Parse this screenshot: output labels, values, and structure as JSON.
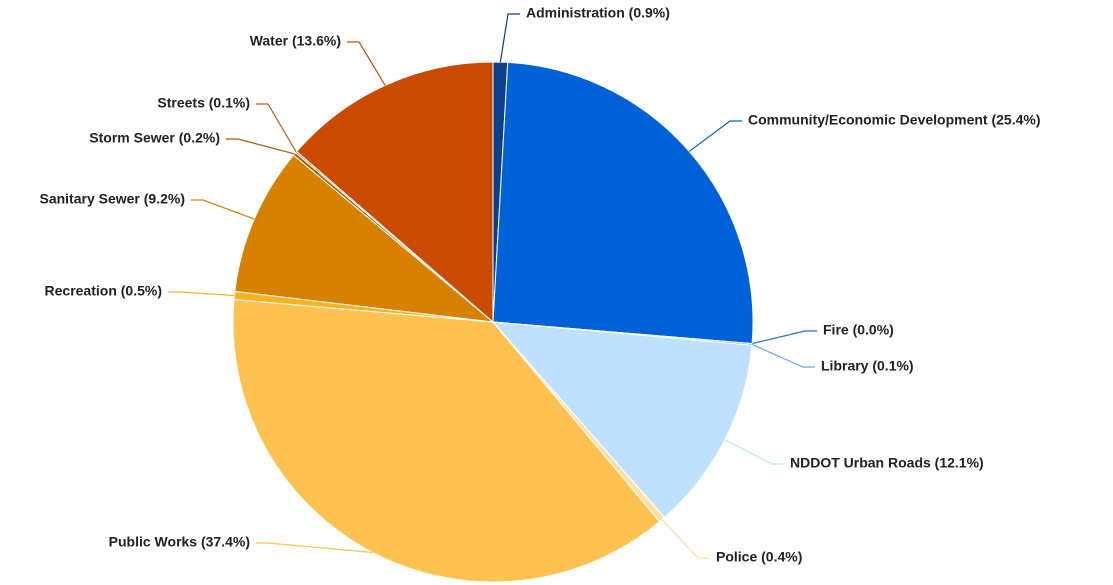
{
  "chart_data": {
    "type": "pie",
    "categories": [
      "Administration (0.9%)",
      "Community/Economic Development (25.4%)",
      "Fire (0.0%)",
      "Library (0.1%)",
      "NDDOT Urban Roads (12.1%)",
      "Police (0.4%)",
      "Public Works (37.4%)",
      "Recreation (0.5%)",
      "Sanitary Sewer (9.2%)",
      "Storm Sewer (0.2%)",
      "Streets (0.1%)",
      "Water (13.6%)"
    ],
    "values": [
      0.9,
      25.4,
      0.0,
      0.1,
      12.1,
      0.4,
      37.4,
      0.5,
      9.2,
      0.2,
      0.1,
      13.6
    ],
    "colors": [
      "#0d3f8a",
      "#0062d6",
      "#2a6fd6",
      "#6aa7ee",
      "#bfe0ff",
      "#ffe0a8",
      "#ffc250",
      "#ffb020",
      "#d68100",
      "#a65c00",
      "#c06020",
      "#c94a00"
    ]
  }
}
